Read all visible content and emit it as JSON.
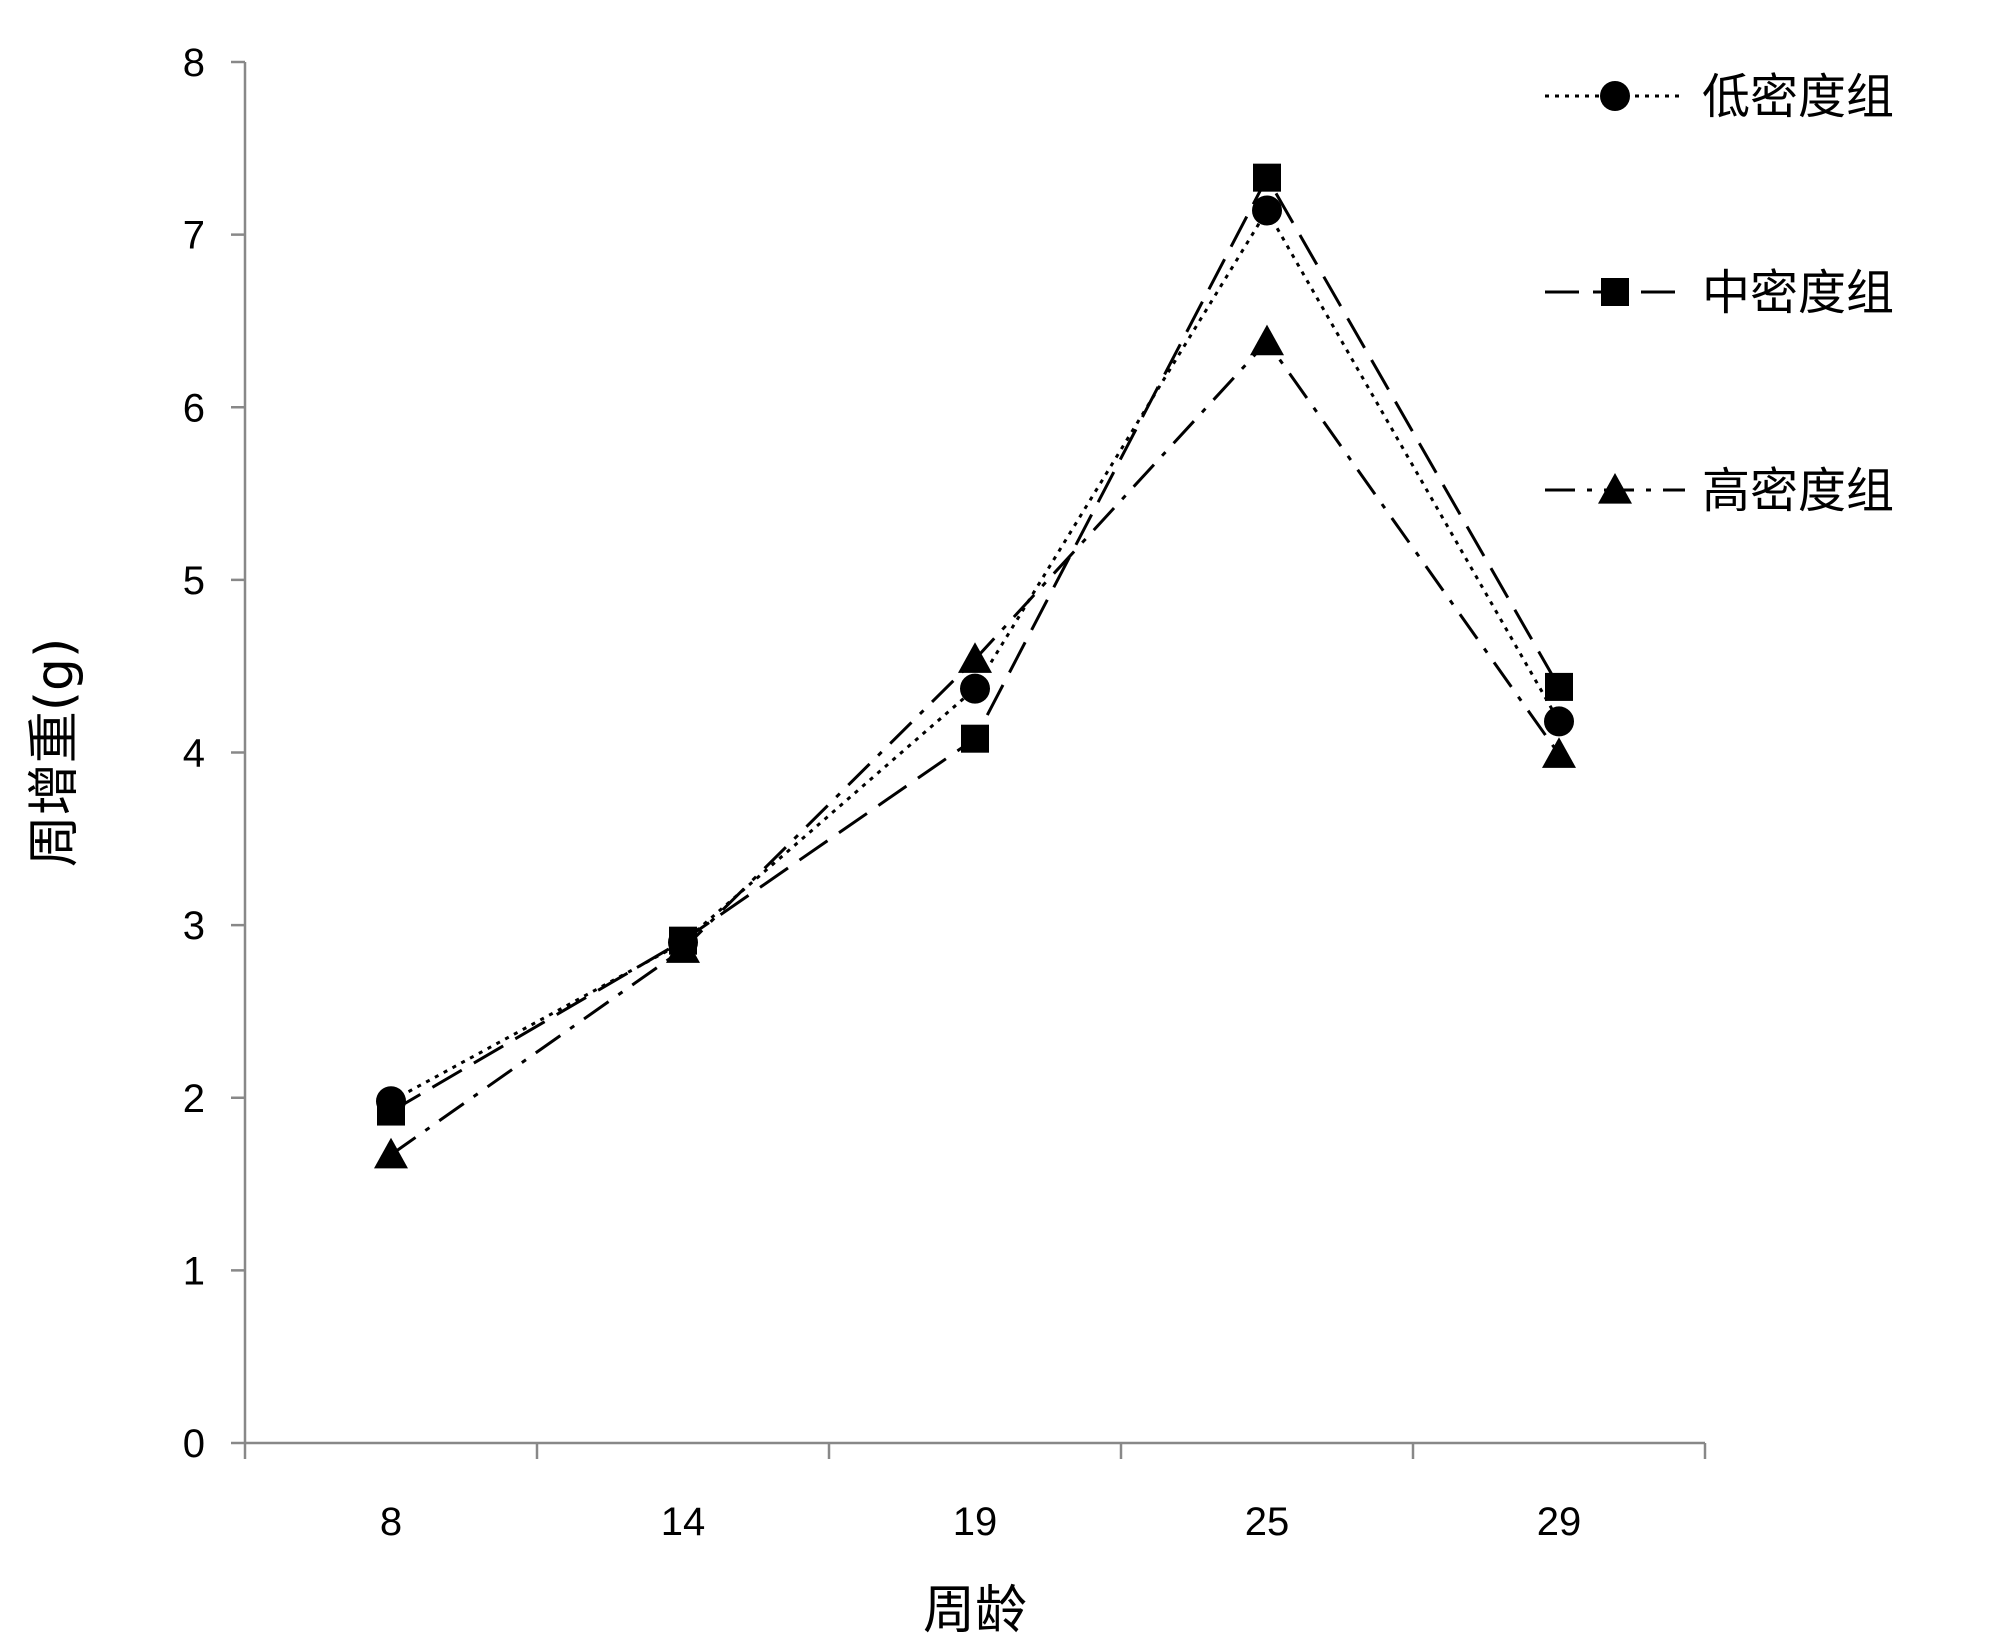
{
  "chart_data": {
    "type": "line",
    "xlabel": "周龄",
    "ylabel": "周增重(g)",
    "categories": [
      "8",
      "14",
      "19",
      "25",
      "29"
    ],
    "ylim": [
      0,
      8
    ],
    "yticks": [
      "0",
      "1",
      "2",
      "3",
      "4",
      "5",
      "6",
      "7",
      "8"
    ],
    "grid": false,
    "legend_position": "top-right",
    "series": [
      {
        "name": "低密度组",
        "values": [
          1.98,
          2.9,
          4.37,
          7.14,
          4.18
        ],
        "marker": "circle",
        "line_style": "dotted",
        "color": "#000000"
      },
      {
        "name": "中密度组",
        "values": [
          1.92,
          2.91,
          4.08,
          7.33,
          4.38
        ],
        "marker": "square",
        "line_style": "dashed",
        "color": "#000000"
      },
      {
        "name": "高密度组",
        "values": [
          1.67,
          2.86,
          4.54,
          6.38,
          3.99
        ],
        "marker": "triangle",
        "line_style": "dash-dot",
        "color": "#000000"
      }
    ]
  }
}
